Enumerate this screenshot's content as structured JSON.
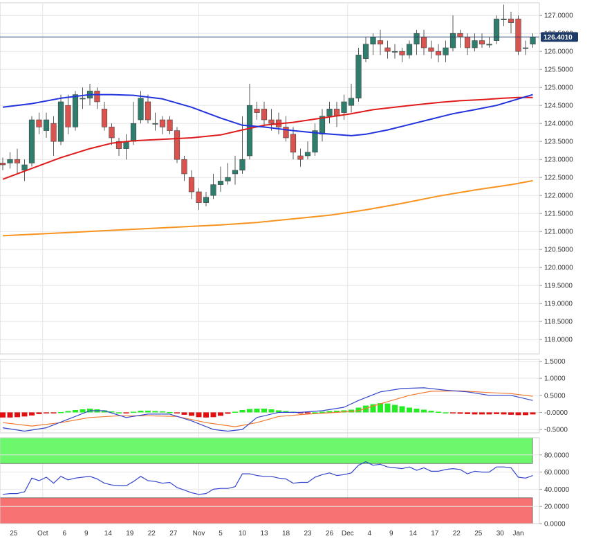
{
  "colors": {
    "bull": "#2f7d6d",
    "bear": "#d9534f",
    "sma_fast": "#2233dd",
    "sma_mid": "#e01b1b",
    "sma_slow": "#f7931e",
    "macd": "#3344cc",
    "signal": "#f07a30",
    "hist_pos": "#22ee22",
    "hist_neg": "#e01010",
    "rsi": "#3344cc",
    "overbought": "#6cf76c",
    "oversold": "#f77272",
    "last_price_bg": "#1e3a66"
  },
  "chart_data": [
    {
      "type": "candlestick",
      "name": "price",
      "ylim": [
        117.6,
        127.35
      ],
      "y_ticks": [
        "127.0000",
        "126.5000",
        "126.0000",
        "125.5000",
        "125.0000",
        "124.5000",
        "124.0000",
        "123.5000",
        "123.0000",
        "122.5000",
        "122.0000",
        "121.5000",
        "121.0000",
        "120.5000",
        "120.0000",
        "119.5000",
        "119.0000",
        "118.5000",
        "118.0000"
      ],
      "y_tick_values": [
        127.0,
        126.5,
        126.0,
        125.5,
        125.0,
        124.5,
        124.0,
        123.5,
        123.0,
        122.5,
        122.0,
        121.5,
        121.0,
        120.5,
        120.0,
        119.5,
        119.0,
        118.5,
        118.0
      ],
      "last_price": 126.401,
      "last_price_label": "126.4010",
      "date_labels": [
        "25",
        "Oct",
        "6",
        "9",
        "14",
        "19",
        "22",
        "27",
        "Nov",
        "5",
        "10",
        "13",
        "18",
        "23",
        "26",
        "Dec",
        "4",
        "9",
        "14",
        "17",
        "22",
        "25",
        "30",
        "Jan"
      ],
      "date_label_index": [
        1.5,
        5.5,
        8.5,
        11.5,
        14.5,
        17.5,
        20.5,
        23.5,
        27,
        30,
        33,
        36,
        39,
        42,
        45,
        47.5,
        50.5,
        53.5,
        56.5,
        59.5,
        62.5,
        65.5,
        68.5,
        71
      ],
      "candles": [
        [
          122.9,
          122.85,
          123.05,
          122.7
        ],
        [
          122.9,
          123.0,
          123.2,
          122.75
        ],
        [
          123.0,
          122.9,
          123.3,
          122.6
        ],
        [
          122.7,
          122.85,
          123.0,
          122.4
        ],
        [
          122.9,
          124.1,
          124.2,
          122.8
        ],
        [
          124.1,
          123.9,
          124.3,
          123.7
        ],
        [
          123.8,
          124.1,
          124.3,
          123.6
        ],
        [
          124.0,
          123.5,
          124.2,
          123.1
        ],
        [
          123.5,
          124.6,
          124.8,
          123.4
        ],
        [
          124.5,
          123.9,
          124.8,
          123.7
        ],
        [
          123.9,
          124.8,
          124.9,
          123.8
        ],
        [
          124.7,
          124.7,
          125.0,
          124.4
        ],
        [
          124.7,
          124.9,
          125.1,
          124.5
        ],
        [
          124.9,
          124.6,
          125.0,
          124.4
        ],
        [
          124.4,
          123.9,
          124.6,
          123.8
        ],
        [
          123.9,
          123.6,
          124.0,
          123.4
        ],
        [
          123.5,
          123.3,
          123.6,
          123.1
        ],
        [
          123.3,
          123.5,
          123.7,
          123.0
        ],
        [
          123.5,
          124.0,
          124.6,
          123.4
        ],
        [
          124.1,
          124.7,
          124.9,
          124.0
        ],
        [
          124.6,
          124.1,
          124.8,
          124.0
        ],
        [
          124.0,
          124.0,
          124.3,
          123.8
        ],
        [
          124.1,
          123.9,
          124.2,
          123.7
        ],
        [
          124.1,
          123.8,
          124.2,
          123.7
        ],
        [
          123.8,
          123.0,
          123.9,
          122.9
        ],
        [
          123.0,
          122.6,
          123.1,
          122.4
        ],
        [
          122.5,
          122.1,
          122.7,
          121.9
        ],
        [
          122.1,
          121.8,
          122.2,
          121.6
        ],
        [
          121.8,
          121.95,
          122.1,
          121.7
        ],
        [
          122.0,
          122.3,
          122.6,
          121.9
        ],
        [
          122.3,
          122.4,
          122.8,
          122.1
        ],
        [
          122.4,
          122.5,
          122.9,
          122.3
        ],
        [
          122.6,
          122.7,
          123.1,
          122.3
        ],
        [
          122.7,
          123.0,
          124.2,
          122.6
        ],
        [
          123.1,
          124.5,
          125.1,
          123.0
        ],
        [
          124.4,
          124.3,
          124.6,
          124.1
        ],
        [
          124.4,
          124.1,
          124.6,
          123.9
        ],
        [
          124.1,
          124.0,
          124.4,
          123.8
        ],
        [
          124.1,
          123.9,
          124.3,
          123.7
        ],
        [
          123.9,
          123.6,
          124.2,
          123.5
        ],
        [
          123.7,
          123.2,
          123.9,
          123.0
        ],
        [
          123.1,
          123.0,
          123.3,
          122.8
        ],
        [
          123.1,
          123.2,
          123.5,
          123.0
        ],
        [
          123.2,
          123.8,
          124.0,
          123.1
        ],
        [
          123.7,
          124.2,
          124.4,
          123.5
        ],
        [
          124.2,
          124.4,
          124.6,
          124.0
        ],
        [
          124.4,
          124.2,
          124.6,
          123.9
        ],
        [
          124.3,
          124.6,
          124.8,
          124.1
        ],
        [
          124.5,
          124.7,
          125.1,
          124.3
        ],
        [
          124.7,
          125.9,
          126.1,
          124.6
        ],
        [
          125.8,
          126.2,
          126.4,
          125.7
        ],
        [
          126.2,
          126.4,
          126.5,
          125.9
        ],
        [
          126.3,
          126.2,
          126.6,
          125.9
        ],
        [
          126.1,
          126.0,
          126.3,
          125.8
        ],
        [
          126.0,
          126.0,
          126.2,
          125.8
        ],
        [
          126.0,
          125.9,
          126.1,
          125.7
        ],
        [
          125.9,
          126.2,
          126.3,
          125.8
        ],
        [
          126.2,
          126.5,
          126.6,
          125.9
        ],
        [
          126.4,
          126.1,
          126.6,
          125.9
        ],
        [
          126.1,
          126.0,
          126.3,
          125.8
        ],
        [
          126.0,
          125.9,
          126.2,
          125.7
        ],
        [
          125.9,
          126.1,
          126.3,
          125.7
        ],
        [
          126.1,
          126.5,
          127.0,
          126.0
        ],
        [
          126.5,
          126.4,
          126.6,
          126.1
        ],
        [
          126.4,
          126.1,
          126.5,
          125.9
        ],
        [
          126.1,
          126.3,
          126.5,
          126.0
        ],
        [
          126.3,
          126.2,
          126.5,
          126.1
        ],
        [
          126.2,
          126.2,
          126.4,
          126.1
        ],
        [
          126.3,
          126.9,
          127.0,
          126.2
        ],
        [
          126.9,
          126.9,
          127.3,
          126.7
        ],
        [
          126.9,
          126.8,
          127.1,
          126.5
        ],
        [
          126.9,
          126.0,
          127.0,
          125.9
        ],
        [
          126.1,
          126.1,
          126.3,
          125.9
        ],
        [
          126.2,
          126.4,
          126.5,
          126.1
        ]
      ],
      "sma_fast": [
        [
          0,
          124.45
        ],
        [
          4,
          124.55
        ],
        [
          8,
          124.7
        ],
        [
          12,
          124.8
        ],
        [
          15,
          124.8
        ],
        [
          18,
          124.78
        ],
        [
          22,
          124.68
        ],
        [
          26,
          124.45
        ],
        [
          30,
          124.15
        ],
        [
          33,
          123.95
        ],
        [
          36,
          123.9
        ],
        [
          40,
          123.8
        ],
        [
          44,
          123.72
        ],
        [
          48,
          123.66
        ],
        [
          50,
          123.7
        ],
        [
          53,
          123.82
        ],
        [
          56,
          123.97
        ],
        [
          59,
          124.12
        ],
        [
          62,
          124.27
        ],
        [
          65,
          124.38
        ],
        [
          68,
          124.5
        ],
        [
          71,
          124.68
        ],
        [
          73,
          124.8
        ]
      ],
      "sma_mid": [
        [
          0,
          122.45
        ],
        [
          4,
          122.75
        ],
        [
          8,
          123.05
        ],
        [
          12,
          123.3
        ],
        [
          15,
          123.45
        ],
        [
          18,
          123.52
        ],
        [
          22,
          123.56
        ],
        [
          26,
          123.6
        ],
        [
          30,
          123.68
        ],
        [
          33,
          123.82
        ],
        [
          36,
          123.95
        ],
        [
          40,
          124.03
        ],
        [
          44,
          124.15
        ],
        [
          48,
          124.27
        ],
        [
          51,
          124.38
        ],
        [
          54,
          124.45
        ],
        [
          57,
          124.52
        ],
        [
          60,
          124.58
        ],
        [
          63,
          124.63
        ],
        [
          66,
          124.66
        ],
        [
          69,
          124.7
        ],
        [
          71,
          124.72
        ],
        [
          73,
          124.72
        ]
      ],
      "sma_slow": [
        [
          0,
          120.88
        ],
        [
          10,
          120.98
        ],
        [
          20,
          121.08
        ],
        [
          30,
          121.18
        ],
        [
          35,
          121.25
        ],
        [
          40,
          121.35
        ],
        [
          45,
          121.45
        ],
        [
          50,
          121.6
        ],
        [
          55,
          121.78
        ],
        [
          60,
          121.98
        ],
        [
          65,
          122.15
        ],
        [
          70,
          122.3
        ],
        [
          73,
          122.41
        ]
      ]
    },
    {
      "type": "macd",
      "name": "macd",
      "ylim": [
        -0.6,
        1.55
      ],
      "y_ticks": [
        "1.5000",
        "1.0000",
        "0.5000",
        "-0.0000",
        "-0.5000"
      ],
      "y_tick_values": [
        1.5,
        1.0,
        0.5,
        0.0,
        -0.5
      ],
      "histogram": [
        -0.15,
        -0.15,
        -0.14,
        -0.12,
        -0.09,
        -0.05,
        -0.02,
        -0.01,
        0.01,
        0.04,
        0.07,
        0.09,
        0.11,
        0.09,
        0.06,
        0.03,
        0.0,
        -0.01,
        0.02,
        0.05,
        0.05,
        0.04,
        0.03,
        0.01,
        -0.03,
        -0.07,
        -0.1,
        -0.14,
        -0.15,
        -0.14,
        -0.1,
        -0.04,
        0.02,
        0.07,
        0.1,
        0.11,
        0.11,
        0.09,
        0.06,
        0.04,
        0.02,
        -0.01,
        -0.01,
        0.0,
        0.02,
        0.04,
        0.05,
        0.06,
        0.08,
        0.14,
        0.2,
        0.24,
        0.27,
        0.26,
        0.22,
        0.18,
        0.14,
        0.11,
        0.08,
        0.05,
        0.02,
        0.0,
        -0.02,
        -0.04,
        -0.05,
        -0.06,
        -0.06,
        -0.06,
        -0.05,
        -0.06,
        -0.07,
        -0.08,
        -0.08,
        -0.06
      ],
      "macd_line": [
        [
          0,
          -0.45
        ],
        [
          3,
          -0.55
        ],
        [
          6,
          -0.45
        ],
        [
          9,
          -0.2
        ],
        [
          12,
          0.05
        ],
        [
          14,
          0.05
        ],
        [
          17,
          -0.15
        ],
        [
          20,
          -0.05
        ],
        [
          23,
          -0.05
        ],
        [
          26,
          -0.25
        ],
        [
          29,
          -0.5
        ],
        [
          31,
          -0.55
        ],
        [
          33,
          -0.5
        ],
        [
          35,
          -0.15
        ],
        [
          38,
          0.0
        ],
        [
          41,
          0.0
        ],
        [
          44,
          0.05
        ],
        [
          47,
          0.15
        ],
        [
          49,
          0.35
        ],
        [
          52,
          0.6
        ],
        [
          55,
          0.7
        ],
        [
          58,
          0.72
        ],
        [
          61,
          0.65
        ],
        [
          64,
          0.6
        ],
        [
          67,
          0.5
        ],
        [
          70,
          0.5
        ],
        [
          73,
          0.35
        ]
      ],
      "signal_line": [
        [
          0,
          -0.3
        ],
        [
          4,
          -0.4
        ],
        [
          8,
          -0.3
        ],
        [
          12,
          -0.15
        ],
        [
          16,
          -0.1
        ],
        [
          20,
          -0.1
        ],
        [
          24,
          -0.12
        ],
        [
          28,
          -0.3
        ],
        [
          32,
          -0.42
        ],
        [
          35,
          -0.3
        ],
        [
          38,
          -0.12
        ],
        [
          42,
          -0.05
        ],
        [
          46,
          0.0
        ],
        [
          49,
          0.05
        ],
        [
          52,
          0.25
        ],
        [
          56,
          0.5
        ],
        [
          59,
          0.62
        ],
        [
          63,
          0.63
        ],
        [
          67,
          0.58
        ],
        [
          70,
          0.55
        ],
        [
          73,
          0.47
        ]
      ]
    },
    {
      "type": "rsi",
      "name": "rsi",
      "ylim": [
        0,
        100
      ],
      "y_ticks": [
        "80.0000",
        "60.0000",
        "40.0000",
        "20.0000",
        "0.0000"
      ],
      "y_tick_values": [
        80,
        60,
        40,
        20,
        0
      ],
      "overbought_zone": [
        70,
        100
      ],
      "oversold_zone": [
        0,
        30
      ],
      "values": [
        [
          0,
          34
        ],
        [
          1,
          35
        ],
        [
          2,
          35
        ],
        [
          3,
          37
        ],
        [
          4,
          53
        ],
        [
          5,
          50
        ],
        [
          6,
          54
        ],
        [
          7,
          47
        ],
        [
          8,
          55
        ],
        [
          9,
          51
        ],
        [
          10,
          53
        ],
        [
          11,
          54
        ],
        [
          12,
          55
        ],
        [
          13,
          52
        ],
        [
          14,
          47
        ],
        [
          15,
          45
        ],
        [
          16,
          44
        ],
        [
          17,
          44
        ],
        [
          18,
          49
        ],
        [
          19,
          55
        ],
        [
          20,
          50
        ],
        [
          21,
          49
        ],
        [
          22,
          47
        ],
        [
          23,
          48
        ],
        [
          24,
          42
        ],
        [
          25,
          39
        ],
        [
          26,
          36
        ],
        [
          27,
          34
        ],
        [
          28,
          35
        ],
        [
          29,
          40
        ],
        [
          30,
          41
        ],
        [
          31,
          41
        ],
        [
          32,
          43
        ],
        [
          33,
          58
        ],
        [
          34,
          58
        ],
        [
          35,
          56
        ],
        [
          36,
          55
        ],
        [
          37,
          55
        ],
        [
          38,
          53
        ],
        [
          39,
          52
        ],
        [
          40,
          47
        ],
        [
          41,
          48
        ],
        [
          42,
          48
        ],
        [
          43,
          54
        ],
        [
          44,
          57
        ],
        [
          45,
          59
        ],
        [
          46,
          56
        ],
        [
          47,
          57
        ],
        [
          48,
          59
        ],
        [
          49,
          68
        ],
        [
          50,
          72
        ],
        [
          51,
          68
        ],
        [
          52,
          69
        ],
        [
          53,
          66
        ],
        [
          54,
          65
        ],
        [
          55,
          64
        ],
        [
          56,
          66
        ],
        [
          57,
          62
        ],
        [
          58,
          65
        ],
        [
          59,
          61
        ],
        [
          60,
          61
        ],
        [
          61,
          63
        ],
        [
          62,
          64
        ],
        [
          63,
          63
        ],
        [
          64,
          58
        ],
        [
          65,
          61
        ],
        [
          66,
          60
        ],
        [
          67,
          60
        ],
        [
          68,
          66
        ],
        [
          69,
          66
        ],
        [
          70,
          65
        ],
        [
          71,
          54
        ],
        [
          72,
          53
        ],
        [
          73,
          56
        ]
      ]
    }
  ]
}
